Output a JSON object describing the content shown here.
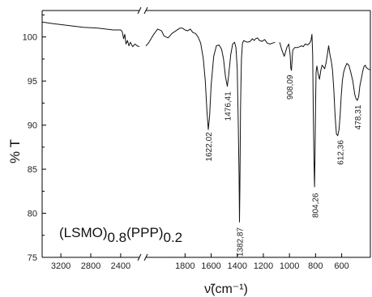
{
  "chart_data": {
    "type": "line",
    "xlabel": "ν̃(cm⁻¹)",
    "ylabel": "% T",
    "annotation": {
      "main": "(LSMO)",
      "sub1": "0.8",
      "mid": "(PPP)",
      "sub2": "0.2"
    },
    "ylim": [
      75,
      103
    ],
    "y_ticks": [
      75,
      80,
      85,
      90,
      95,
      100
    ],
    "x_axis_break": true,
    "x_ticks_high": [
      3200,
      2800,
      2400
    ],
    "x_ticks_low": [
      1800,
      1600,
      1400,
      1200,
      1000,
      800,
      600
    ],
    "x_ticks_high_labels": [
      "3200",
      "2800",
      "2400"
    ],
    "x_ticks_low_labels": [
      "1800",
      "1600",
      "1400",
      "1200",
      "1000",
      "800",
      "600"
    ],
    "xlim_high": [
      3450,
      2150
    ],
    "xlim_low": [
      2100,
      380
    ],
    "series": [
      {
        "x": [
          3450,
          3300,
          3100,
          2900,
          2700,
          2500,
          2400,
          2380,
          2360,
          2345,
          2330,
          2310,
          2290,
          2270,
          2240,
          2210,
          2180,
          2150
        ],
        "y": [
          101.7,
          101.5,
          101.3,
          101.1,
          101.0,
          100.8,
          100.8,
          100.6,
          99.8,
          100.3,
          99.2,
          99.6,
          99.0,
          99.4,
          98.9,
          99.2,
          99.0,
          98.9
        ]
      },
      {
        "x": [
          2100,
          2080,
          2060,
          2040,
          2010,
          1980,
          1960,
          1930,
          1900,
          1870,
          1840,
          1820,
          1800,
          1780,
          1760,
          1740,
          1720,
          1700,
          1680,
          1660,
          1645,
          1632,
          1622,
          1612,
          1600,
          1580,
          1560,
          1540,
          1520,
          1505,
          1490,
          1476,
          1465,
          1450,
          1435,
          1420,
          1410,
          1400,
          1392,
          1386,
          1383,
          1380,
          1375,
          1368,
          1360,
          1350,
          1340,
          1320,
          1300,
          1285,
          1270,
          1260,
          1245,
          1230,
          1210,
          1190,
          1170,
          1150,
          1130,
          1110
        ],
        "y": [
          99.0,
          99.3,
          99.8,
          100.3,
          100.9,
          100.7,
          100.1,
          99.9,
          100.4,
          100.7,
          101.0,
          101.0,
          100.8,
          100.7,
          100.9,
          100.5,
          100.4,
          100.0,
          99.3,
          97.5,
          95.0,
          91.5,
          89.5,
          91.0,
          94.5,
          97.8,
          99.0,
          99.1,
          98.6,
          97.5,
          95.5,
          94.4,
          95.8,
          98.0,
          99.2,
          99.4,
          98.8,
          96.5,
          90.0,
          84.0,
          79.0,
          83.0,
          92.0,
          97.5,
          99.3,
          99.6,
          99.5,
          99.4,
          99.5,
          99.8,
          99.6,
          99.8,
          99.9,
          99.6,
          99.5,
          99.7,
          99.3,
          99.2,
          99.3,
          99.4
        ]
      },
      {
        "x": [
          1075,
          1060,
          1040,
          1020,
          1005,
          995,
          990,
          985,
          975,
          960,
          940,
          920,
          908,
          895,
          880,
          860,
          845,
          835,
          828,
          822,
          818,
          812,
          808,
          804,
          800,
          796,
          790,
          780,
          770,
          760,
          750,
          740,
          730,
          720,
          710,
          700,
          690,
          680,
          670,
          660,
          650,
          640,
          630,
          620,
          612,
          605,
          595,
          585,
          575,
          560,
          545,
          530,
          515,
          500,
          490,
          480,
          470,
          460,
          450,
          440,
          430,
          420,
          410,
          400,
          390,
          380
        ],
        "y": [
          99.4,
          98.6,
          97.8,
          98.8,
          99.2,
          98.0,
          96.5,
          96.2,
          98.5,
          98.8,
          98.8,
          98.9,
          99.0,
          98.9,
          99.2,
          99.1,
          99.3,
          99.6,
          100.3,
          98.0,
          92.0,
          86.0,
          83.0,
          86.5,
          92.5,
          96.0,
          96.7,
          95.8,
          95.2,
          96.2,
          96.8,
          96.6,
          96.4,
          97.0,
          98.0,
          99.0,
          98.0,
          97.3,
          96.2,
          94.0,
          91.0,
          89.0,
          88.8,
          89.5,
          91.0,
          93.0,
          95.0,
          96.0,
          96.5,
          97.0,
          96.8,
          96.0,
          95.0,
          93.5,
          93.0,
          92.8,
          93.2,
          94.5,
          95.2,
          96.0,
          96.6,
          96.8,
          96.5,
          96.4,
          96.3,
          96.3
        ]
      }
    ],
    "peak_labels": [
      {
        "text": "1622,02",
        "x": 1622,
        "y": 89.2
      },
      {
        "text": "1476,41",
        "x": 1476,
        "y": 93.8
      },
      {
        "text": "1382,87",
        "x": 1383,
        "y": 78.4
      },
      {
        "text": "908,09",
        "x": 1000,
        "y": 95.7
      },
      {
        "text": "804,26",
        "x": 804,
        "y": 82.3
      },
      {
        "text": "612,36",
        "x": 612,
        "y": 88.3
      },
      {
        "text": "478,31",
        "x": 478,
        "y": 92.3
      }
    ],
    "line_color": "#111111"
  }
}
